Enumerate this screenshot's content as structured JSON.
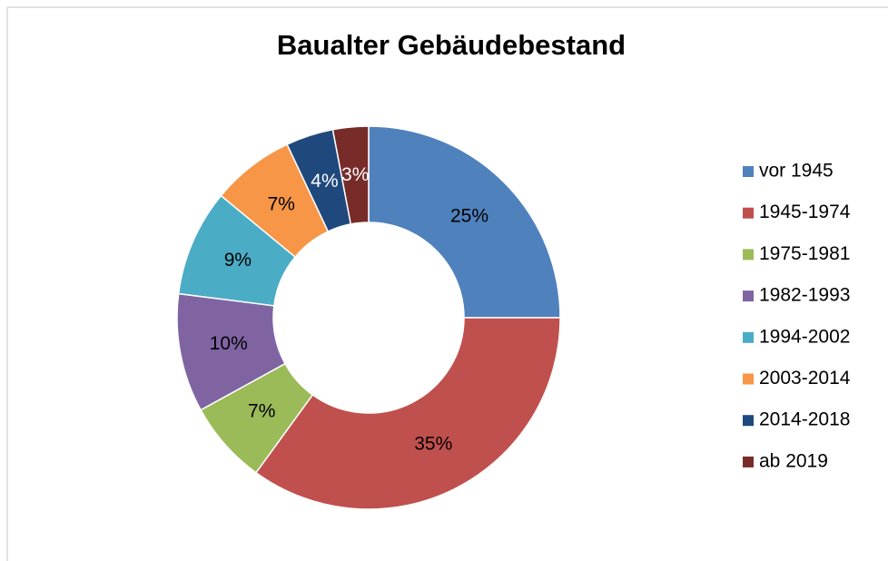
{
  "chart_data": {
    "type": "donut",
    "title": "Baualter Gebäudebestand",
    "categories": [
      "vor 1945",
      "1945-1974",
      "1975-1981",
      "1982-1993",
      "1994-2002",
      "2003-2014",
      "2014-2018",
      "ab 2019"
    ],
    "values": [
      25,
      35,
      7,
      10,
      9,
      7,
      4,
      3
    ],
    "value_labels": [
      "25%",
      "35%",
      "7%",
      "10%",
      "9%",
      "7%",
      "4%",
      "3%"
    ],
    "colors": [
      "#4f81bd",
      "#c0504d",
      "#9bbb59",
      "#8064a2",
      "#4bacc6",
      "#f79646",
      "#1f497d",
      "#772c2a"
    ],
    "legend": "right"
  }
}
